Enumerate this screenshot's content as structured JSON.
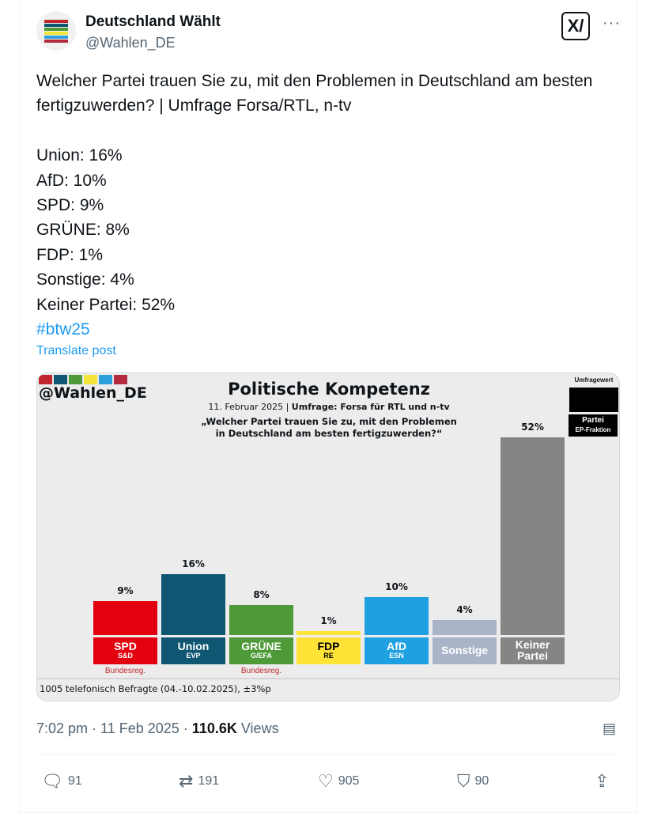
{
  "account": {
    "name": "Deutschland Wählt",
    "handle": "@Wahlen_DE",
    "avatar_colors": [
      "#c0272d",
      "#0e5672",
      "#4f9a38",
      "#f5e43a",
      "#2ba0dc",
      "#b52a3e"
    ]
  },
  "header": {
    "x_icon": "x-grok-icon",
    "more_icon": "more-icon",
    "more": "···"
  },
  "post": {
    "lines": [
      "Welcher Partei trauen Sie zu, mit den Problemen in Deutschland am besten fertigzuwerden? | Umfrage Forsa/RTL, n-tv",
      "Union: 16%",
      "AfD: 10%",
      "SPD: 9%",
      "GRÜNE: 8%",
      "FDP: 1%",
      "Sonstige: 4%",
      "Keiner Partei: 52%"
    ],
    "hashtag": "#btw25",
    "translate": "Translate post"
  },
  "chart_data": {
    "type": "bar",
    "watermark": "@Wahlen_DE",
    "title": "Politische Kompetenz",
    "subtitle_date": "11. Februar 2025 | ",
    "subtitle_source": "Umfrage: Forsa für RTL und n-tv",
    "question_line1": "„Welcher Partei trauen Sie zu, mit den Problemen",
    "question_line2": "in Deutschland am besten fertigzuwerden?“",
    "legend": {
      "value": "Umfragewert",
      "party": "Partei",
      "group": "EP-Fraktion"
    },
    "categories": [
      "SPD",
      "Union",
      "GRÜNE",
      "FDP",
      "AfD",
      "Sonstige",
      "Keiner Partei"
    ],
    "groups": [
      "S&D",
      "EVP",
      "G/EFA",
      "RE",
      "ESN",
      "",
      ""
    ],
    "values": [
      9,
      16,
      8,
      1,
      10,
      4,
      52
    ],
    "value_labels": [
      "9%",
      "16%",
      "8%",
      "1%",
      "10%",
      "4%",
      "52%"
    ],
    "colors": [
      "#e3000f",
      "#0e5672",
      "#4f9a38",
      "#ffe337",
      "#1fa0e0",
      "#aab4c8",
      "#858585"
    ],
    "label_text_colors": [
      "#fff",
      "#fff",
      "#fff",
      "#000",
      "#fff",
      "#fff",
      "#fff"
    ],
    "notes": [
      "Bundesreg.",
      "",
      "Bundesreg.",
      "",
      "",
      "",
      ""
    ],
    "ylim": [
      0,
      52
    ],
    "footer": "1005 telefonisch Befragte (04.-10.02.2025), ±3%p"
  },
  "meta": {
    "time": "7:02 pm",
    "date": "11 Feb 2025",
    "views": "110.6K",
    "views_label": "Views"
  },
  "actions": {
    "replies": "91",
    "reposts": "191",
    "likes": "905",
    "bookmarks": "90"
  }
}
